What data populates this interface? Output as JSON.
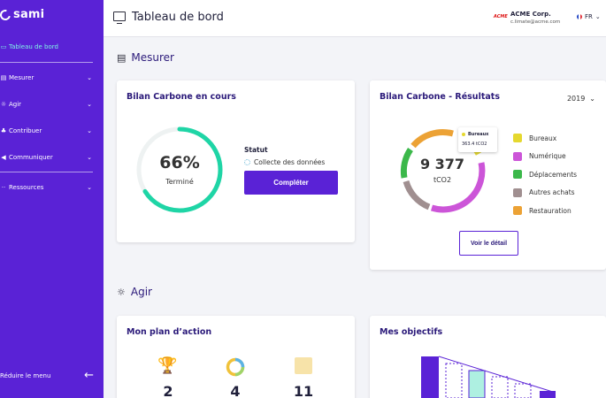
{
  "brand": {
    "name": "sami"
  },
  "sidebar": {
    "items": [
      {
        "label": "Tableau de bord",
        "icon": "dashboard-icon"
      },
      {
        "label": "Mesurer",
        "icon": "list-icon"
      },
      {
        "label": "Agir",
        "icon": "lightbulb-icon"
      },
      {
        "label": "Contribuer",
        "icon": "handshake-icon"
      },
      {
        "label": "Communiquer",
        "icon": "megaphone-icon"
      },
      {
        "label": "Ressources",
        "icon": "dots-icon"
      }
    ],
    "collapse_label": "Réduire le menu"
  },
  "header": {
    "title": "Tableau de bord",
    "company_logo_text": "ACME",
    "company_name": "ACME Corp.",
    "company_email": "c.limate@acme.com",
    "language": "FR"
  },
  "sections": {
    "measure": "Mesurer",
    "act": "Agir"
  },
  "current_assessment": {
    "title": "Bilan Carbone en cours",
    "progress_percent": 66,
    "progress_text": "66%",
    "progress_caption": "Terminé",
    "status_label": "Statut",
    "status_value": "Collecte des données",
    "button_label": "Compléter",
    "colors": {
      "progress": "#1fd5a6",
      "track": "#eef2f2"
    }
  },
  "results": {
    "title": "Bilan Carbone - Résultats",
    "year": "2019",
    "total_value": "9 377",
    "total_unit": "tCO2",
    "tooltip": {
      "label": "Bureaux",
      "value": "363.4 tCO2"
    },
    "button_label": "Voir le détail",
    "legend": [
      {
        "label": "Bureaux",
        "color": "#e5d82f"
      },
      {
        "label": "Numérique",
        "color": "#cc55d8"
      },
      {
        "label": "Déplacements",
        "color": "#3bb84a"
      },
      {
        "label": "Autres achats",
        "color": "#a08f90"
      },
      {
        "label": "Restauration",
        "color": "#eca235"
      }
    ]
  },
  "action_plan": {
    "title": "Mon plan d’action",
    "stats": [
      {
        "value": "2",
        "icon": "trophy-icon"
      },
      {
        "value": "4",
        "icon": "progress-ring-icon"
      },
      {
        "value": "11",
        "icon": "clipboard-icon"
      }
    ]
  },
  "objectives": {
    "title": "Mes objectifs"
  },
  "accent_color": "#5a22d6"
}
